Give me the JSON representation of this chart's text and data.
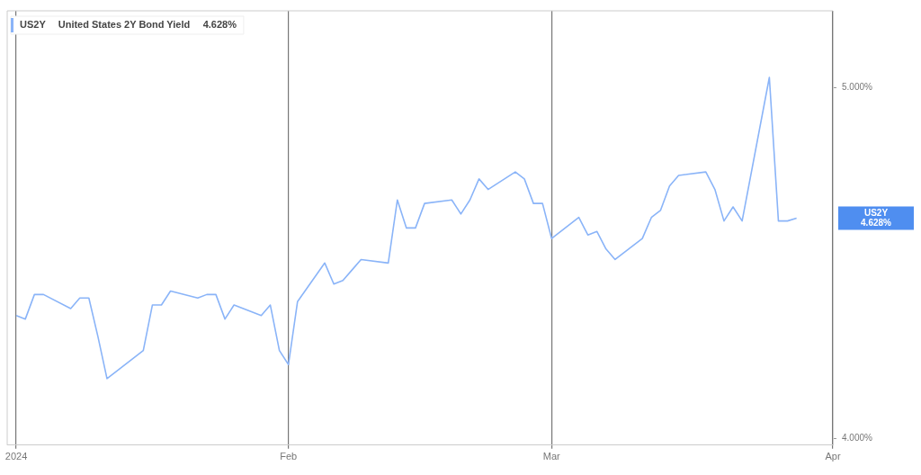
{
  "chart_data": {
    "type": "line",
    "title": "United States 2Y Bond Yield",
    "x": [
      "2024-01-02",
      "2024-01-03",
      "2024-01-04",
      "2024-01-05",
      "2024-01-08",
      "2024-01-09",
      "2024-01-10",
      "2024-01-11",
      "2024-01-12",
      "2024-01-16",
      "2024-01-17",
      "2024-01-18",
      "2024-01-19",
      "2024-01-22",
      "2024-01-23",
      "2024-01-24",
      "2024-01-25",
      "2024-01-26",
      "2024-01-29",
      "2024-01-30",
      "2024-01-31",
      "2024-02-01",
      "2024-02-02",
      "2024-02-05",
      "2024-02-06",
      "2024-02-07",
      "2024-02-08",
      "2024-02-09",
      "2024-02-12",
      "2024-02-13",
      "2024-02-14",
      "2024-02-15",
      "2024-02-16",
      "2024-02-19",
      "2024-02-20",
      "2024-02-21",
      "2024-02-22",
      "2024-02-23",
      "2024-02-26",
      "2024-02-27",
      "2024-02-28",
      "2024-02-29",
      "2024-03-01",
      "2024-03-04",
      "2024-03-05",
      "2024-03-06",
      "2024-03-07",
      "2024-03-08",
      "2024-03-11",
      "2024-03-12",
      "2024-03-13",
      "2024-03-14",
      "2024-03-15",
      "2024-03-18",
      "2024-03-19",
      "2024-03-20",
      "2024-03-21",
      "2024-03-22",
      "2024-03-25",
      "2024-03-26",
      "2024-03-27",
      "2024-03-28"
    ],
    "series": [
      {
        "name": "US2Y",
        "color": "#8ab4f8",
        "values": [
          4.35,
          4.34,
          4.41,
          4.41,
          4.37,
          4.4,
          4.4,
          4.29,
          4.17,
          4.25,
          4.38,
          4.38,
          4.42,
          4.4,
          4.41,
          4.41,
          4.34,
          4.38,
          4.35,
          4.38,
          4.25,
          4.21,
          4.39,
          4.5,
          4.44,
          4.45,
          4.48,
          4.51,
          4.5,
          4.68,
          4.6,
          4.6,
          4.67,
          4.68,
          4.64,
          4.68,
          4.74,
          4.71,
          4.76,
          4.74,
          4.67,
          4.67,
          4.57,
          4.63,
          4.58,
          4.59,
          4.54,
          4.51,
          4.57,
          4.63,
          4.65,
          4.72,
          4.75,
          4.76,
          4.71,
          4.62,
          4.66,
          4.62,
          5.03,
          4.62,
          4.62,
          4.628
        ]
      }
    ],
    "xlim": [
      "2024-01-01",
      "2024-04-01"
    ],
    "xticks": [
      {
        "value": "2024-01-02",
        "label": "2024"
      },
      {
        "value": "2024-02-01",
        "label": "Feb"
      },
      {
        "value": "2024-03-01",
        "label": "Mar"
      },
      {
        "value": "2024-04-01",
        "label": "Apr"
      }
    ],
    "ylim": [
      3.98,
      5.22
    ],
    "yticks": [
      {
        "value": 4,
        "label": "4.000%"
      },
      {
        "value": 5,
        "label": "5.000%"
      }
    ],
    "grid": "x",
    "legend": "top left",
    "annotations": [
      "4.628%"
    ]
  }
}
